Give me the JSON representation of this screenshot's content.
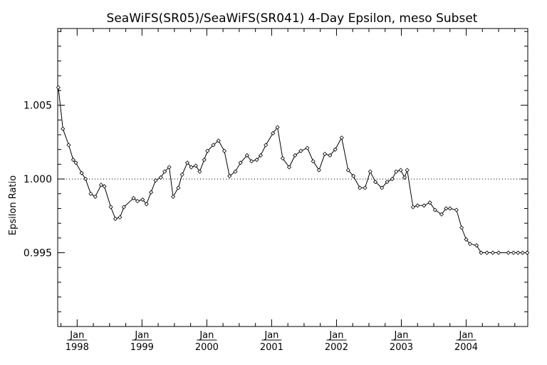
{
  "chart_data": {
    "type": "line",
    "title": "SeaWiFS(SR05)/SeaWiFS(SR041) 4-Day Epsilon, meso Subset",
    "xlabel": "",
    "ylabel": "Epsilon Ratio",
    "xlim": [
      1997.7,
      2004.95
    ],
    "ylim": [
      0.99,
      1.0102
    ],
    "yticks": [
      0.995,
      1.0,
      1.005
    ],
    "ytick_labels": [
      "0.995",
      "1.000",
      "1.005"
    ],
    "xticks": [
      {
        "month": "Jan",
        "year": "1998",
        "value": 1998.0
      },
      {
        "month": "Jan",
        "year": "1999",
        "value": 1999.0
      },
      {
        "month": "Jan",
        "year": "2000",
        "value": 2000.0
      },
      {
        "month": "Jan",
        "year": "2001",
        "value": 2001.0
      },
      {
        "month": "Jan",
        "year": "2002",
        "value": 2002.0
      },
      {
        "month": "Jan",
        "year": "2003",
        "value": 2003.0
      },
      {
        "month": "Jan",
        "year": "2004",
        "value": 2004.0
      }
    ],
    "reference_line": 1.0,
    "grid": false,
    "series": [
      {
        "x": [
          1997.71,
          1997.78,
          1997.87,
          1997.94,
          1997.98,
          1998.07,
          1998.13,
          1998.21,
          1998.28,
          1998.37,
          1998.42,
          1998.52,
          1998.59,
          1998.66,
          1998.72,
          1998.87,
          1998.93,
          1999.01,
          1999.07,
          1999.14,
          1999.21,
          1999.29,
          1999.35,
          1999.42,
          1999.48,
          1999.56,
          1999.62,
          1999.7,
          1999.76,
          1999.83,
          1999.89,
          1999.96,
          2000.01,
          2000.1,
          2000.18,
          2000.27,
          2000.35,
          2000.44,
          2000.52,
          2000.62,
          2000.69,
          2000.77,
          2000.83,
          2000.91,
          2001.02,
          2001.09,
          2001.17,
          2001.27,
          2001.36,
          2001.45,
          2001.55,
          2001.64,
          2001.73,
          2001.82,
          2001.9,
          2001.98,
          2002.08,
          2002.18,
          2002.26,
          2002.36,
          2002.44,
          2002.52,
          2002.6,
          2002.7,
          2002.78,
          2002.86,
          2002.92,
          2002.99,
          2003.05,
          2003.09,
          2003.18,
          2003.25,
          2003.35,
          2003.44,
          2003.52,
          2003.62,
          2003.69,
          2003.75,
          2003.85,
          2003.93,
          2004.0,
          2004.06,
          2004.16,
          2004.23,
          2004.32,
          2004.41,
          2004.5,
          2004.65,
          2004.73,
          2004.8,
          2004.87,
          2004.94
        ],
        "values": [
          1.0062,
          1.0034,
          1.0023,
          1.0013,
          1.0011,
          1.0004,
          1.0,
          0.999,
          0.9988,
          0.9996,
          0.9995,
          0.9981,
          0.9973,
          0.9974,
          0.9981,
          0.9987,
          0.9985,
          0.9986,
          0.9983,
          0.9991,
          0.9999,
          1.0001,
          1.0005,
          1.0008,
          0.9988,
          0.9994,
          1.0003,
          1.0011,
          1.0008,
          1.0009,
          1.0005,
          1.0013,
          1.0019,
          1.0023,
          1.0026,
          1.0019,
          1.0002,
          1.0005,
          1.0011,
          1.0016,
          1.0012,
          1.0013,
          1.0016,
          1.0023,
          1.0031,
          1.0035,
          1.0014,
          1.0008,
          1.0016,
          1.0019,
          1.0021,
          1.0012,
          1.0006,
          1.0017,
          1.0016,
          1.002,
          1.0028,
          1.0006,
          1.0002,
          0.9994,
          0.9994,
          1.0005,
          0.9998,
          0.9994,
          0.9998,
          1.0,
          1.0005,
          1.0006,
          1.0001,
          1.0006,
          0.9981,
          0.9982,
          0.9982,
          0.9984,
          0.9979,
          0.9976,
          0.998,
          0.998,
          0.9979,
          0.9967,
          0.9959,
          0.9956,
          0.9955,
          0.995,
          0.995,
          0.995,
          0.995,
          0.995,
          0.995,
          0.995,
          0.995,
          0.995
        ]
      }
    ]
  }
}
